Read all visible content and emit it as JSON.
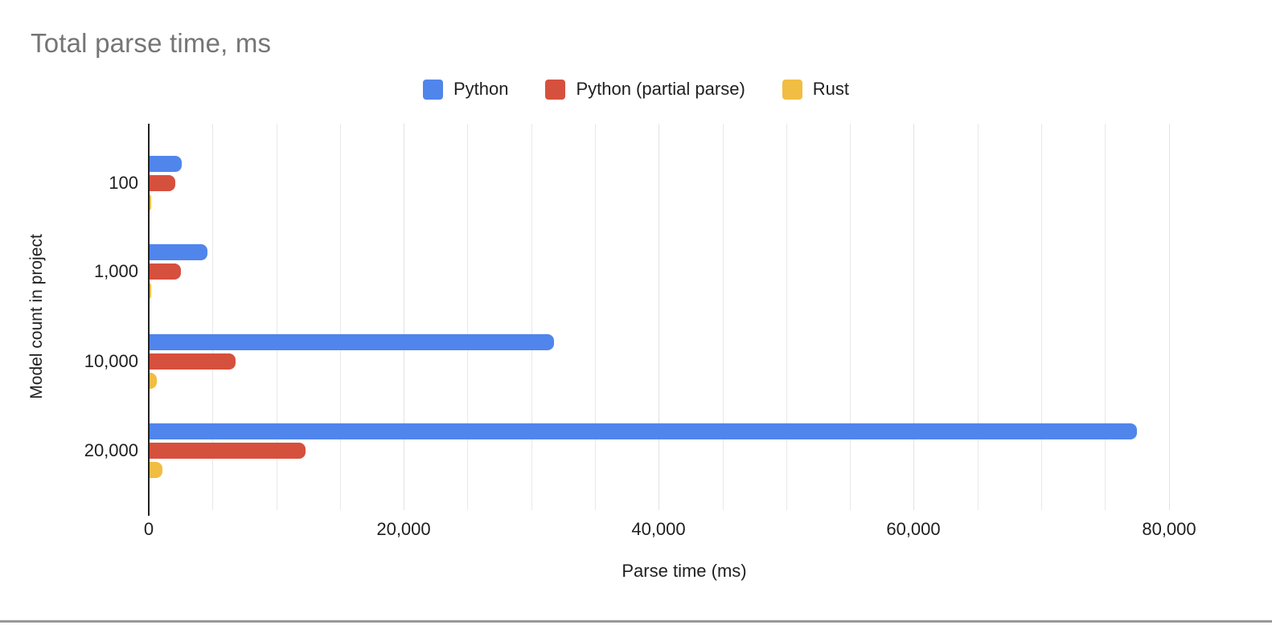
{
  "page": {
    "background": "#ffffff",
    "bottom_rule_color": "#999999"
  },
  "chart_data": {
    "type": "bar",
    "orientation": "horizontal",
    "title": "Total parse time, ms",
    "title_color": "#757575",
    "xlabel": "Parse time (ms)",
    "ylabel": "Model count in project",
    "legend_position": "top",
    "grid": true,
    "categories": [
      "100",
      "1,000",
      "10,000",
      "20,000"
    ],
    "series": [
      {
        "name": "Python",
        "color": "#5085EC",
        "values": [
          2600,
          4600,
          31800,
          77500
        ]
      },
      {
        "name": "Python (partial parse)",
        "color": "#D6503E",
        "values": [
          2100,
          2500,
          6800,
          12300
        ]
      },
      {
        "name": "Rust",
        "color": "#F1BD42",
        "values": [
          130,
          160,
          630,
          1100
        ]
      }
    ],
    "x_axis": {
      "min": 0,
      "max": 84000,
      "tick_interval": 20000,
      "minor_gridline_interval": 5000,
      "tick_labels": [
        "0",
        "20,000",
        "40,000",
        "60,000",
        "80,000"
      ],
      "axis_color": "#212121",
      "gridline_color": "#e8e8e8"
    }
  }
}
